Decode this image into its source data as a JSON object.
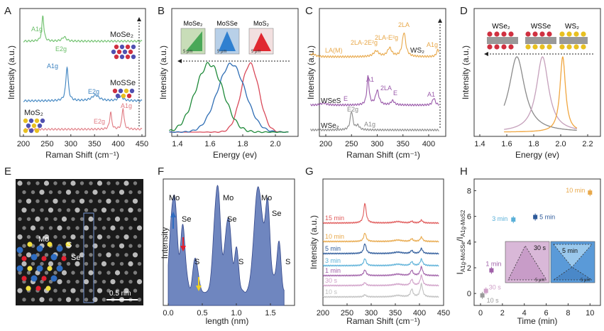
{
  "panel_letters": [
    "A",
    "B",
    "C",
    "D",
    "E",
    "F",
    "G",
    "H"
  ],
  "colors": {
    "mose2": "#6cbf6a",
    "mosse": "#3d83c0",
    "mos2": "#e07a82",
    "ws2": "#e8a84a",
    "wsse": "#9a5aaa",
    "wse2": "#8a8a8a",
    "b_green": "#1f8a3a",
    "b_blue": "#2e6db4",
    "b_red": "#d94a5a",
    "d_gray": "#8a8a8a",
    "d_pink": "#c5a0bb",
    "d_orange": "#f0a640",
    "stem": "#6a7fb8",
    "haadf_fill": "#6f86bf"
  },
  "panel_a": {
    "ylabel": "Intensity (a.u.)",
    "xlabel": "Raman Shift (cm⁻¹)",
    "xticks": [
      "200",
      "250",
      "300",
      "350",
      "400",
      "450"
    ],
    "labels": [
      "MoSe₂",
      "MoSSe",
      "MoS₂"
    ],
    "peak_labels": [
      "A1g",
      "E2g",
      "A1g",
      "E2g",
      "E2g",
      "A1g"
    ]
  },
  "panel_b": {
    "ylabel": "Intensity (a.u.)",
    "xlabel": "Energy (ev)",
    "xticks": [
      "1.4",
      "1.6",
      "1.8",
      "2.0"
    ],
    "inset_labels": [
      "MoSe₂",
      "MoSSe",
      "MoS₂"
    ],
    "scale_label": "5 μm"
  },
  "panel_c": {
    "ylabel": "Intensity (a.u.)",
    "xlabel": "Raman Shift (cm⁻¹)",
    "xticks": [
      "200",
      "250",
      "300",
      "350",
      "400"
    ],
    "labels": [
      "WS₂",
      "WSeS",
      "WSe₂"
    ],
    "peak_labels": [
      "LA(M)",
      "2LA-2E²g",
      "2LA-E²g",
      "2LA",
      "A1g",
      "A1",
      "2LA",
      "E",
      "A1",
      "E",
      "E2g",
      "A1g"
    ]
  },
  "panel_d": {
    "ylabel": "Intensity (a.u.)",
    "xlabel": "Energy (ev)",
    "xticks": [
      "1.4",
      "1.6",
      "1.8",
      "2.0",
      "2.2"
    ],
    "labels": [
      "WSe₂",
      "WSSe",
      "WS₂"
    ]
  },
  "panel_e": {
    "atom_labels": [
      "Mo",
      "S",
      "Se"
    ],
    "scale_label": "0.5 nm"
  },
  "panel_f": {
    "ylabel": "Intensity",
    "xlabel": "length (nm)",
    "xticks": [
      "0.0",
      "0.5",
      "1.0",
      "1.5"
    ],
    "peak_labels": [
      "Mo",
      "Se",
      "S",
      "Mo",
      "Se",
      "S",
      "Mo",
      "Se",
      "S"
    ]
  },
  "panel_g": {
    "ylabel": "Intensity (a.u.)",
    "xlabel": "Raman Shift (cm⁻¹)",
    "xticks": [
      "200",
      "250",
      "300",
      "350",
      "400",
      "450"
    ],
    "times": [
      "15 min",
      "10 min",
      "5 min",
      "3 min",
      "1 min",
      "30 s",
      "10 s"
    ]
  },
  "panel_h": {
    "ylabel_main": "I",
    "ylabel_sub": "A1g-MoSSe",
    "ylabel_sep": "/I",
    "ylabel_sub2": "A1g-MoS2",
    "xlabel": "Time (min)",
    "xticks": [
      "0",
      "2",
      "4",
      "6",
      "8",
      "10"
    ],
    "yticks": [
      "0",
      "2",
      "4",
      "6",
      "8"
    ],
    "inset_times": [
      "30 s",
      "5 min"
    ],
    "scale_label": "5 μm"
  },
  "chart_data": [
    {
      "type": "scatter",
      "title": "H",
      "xlabel": "Time (min)",
      "ylabel": "I(A1g-MoSSe)/I(A1g-MoS2)",
      "xlim": [
        0,
        10.5
      ],
      "ylim": [
        -0.6,
        8.8
      ],
      "points": [
        {
          "label": "10 s",
          "x": 0.17,
          "y": -0.15,
          "color": "#9a9a9a"
        },
        {
          "label": "30 s",
          "x": 0.5,
          "y": 0.2,
          "color": "#d0a0c8"
        },
        {
          "label": "1 min",
          "x": 1.0,
          "y": 1.8,
          "color": "#a060a8"
        },
        {
          "label": "3 min",
          "x": 3.0,
          "y": 5.75,
          "color": "#5ab0d8"
        },
        {
          "label": "5 min",
          "x": 5.0,
          "y": 5.95,
          "color": "#2d5a9a"
        },
        {
          "label": "10 min",
          "x": 10.0,
          "y": 7.85,
          "color": "#e8a84a"
        }
      ]
    },
    {
      "type": "line",
      "title": "G",
      "xlabel": "Raman Shift (cm-1)",
      "ylabel": "Intensity (a.u.)",
      "xlim": [
        200,
        450
      ],
      "series": [
        {
          "name": "15 min",
          "color": "#e05a5a"
        },
        {
          "name": "10 min",
          "color": "#e8a84a"
        },
        {
          "name": "5 min",
          "color": "#2d5a9a"
        },
        {
          "name": "3 min",
          "color": "#5ab0d8"
        },
        {
          "name": "1 min",
          "color": "#a060a8"
        },
        {
          "name": "30 s",
          "color": "#d0a0c8"
        },
        {
          "name": "10 s",
          "color": "#c0c0c0"
        }
      ]
    }
  ]
}
